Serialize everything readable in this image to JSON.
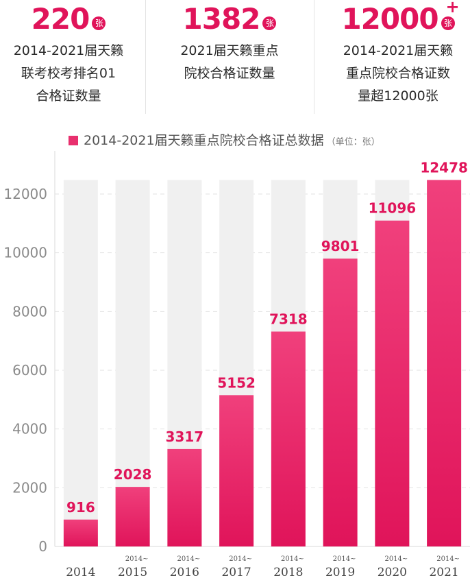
{
  "stats": [
    {
      "value": "220",
      "plus": "",
      "unit": "张",
      "lines": [
        "2014-2021届天籁",
        "联考校考排名01",
        "合格证数量"
      ]
    },
    {
      "value": "1382",
      "plus": "",
      "unit": "张",
      "lines": [
        "2021届天籁重点",
        "院校合格证数量"
      ]
    },
    {
      "value": "12000",
      "plus": "+",
      "unit": "张",
      "lines": [
        "2014-2021届天籁",
        "重点院校合格证数",
        "量超12000张"
      ]
    }
  ],
  "legend": {
    "label": "2014-2021届天籁重点院校合格证总数据",
    "note": "（单位：张）"
  },
  "colors": {
    "accent": "#e0145a",
    "bar_top": "#f0407c",
    "track": "#f0f0f0"
  },
  "chart_data": {
    "type": "bar",
    "title": "2014-2021届天籁重点院校合格证总数据",
    "unit": "（单位：张）",
    "categories": [
      "2014",
      "2015",
      "2016",
      "2017",
      "2018",
      "2019",
      "2020",
      "2021"
    ],
    "category_prefix": [
      "",
      "2014~",
      "2014~",
      "2014~",
      "2014~",
      "2014~",
      "2014~",
      "2014~"
    ],
    "values": [
      916,
      2028,
      3317,
      5152,
      7318,
      9801,
      11096,
      12478
    ],
    "ylim": [
      0,
      12478
    ],
    "yticks": [
      0,
      2000,
      4000,
      6000,
      8000,
      10000,
      12000
    ],
    "grid": true,
    "legend_position": "top"
  }
}
